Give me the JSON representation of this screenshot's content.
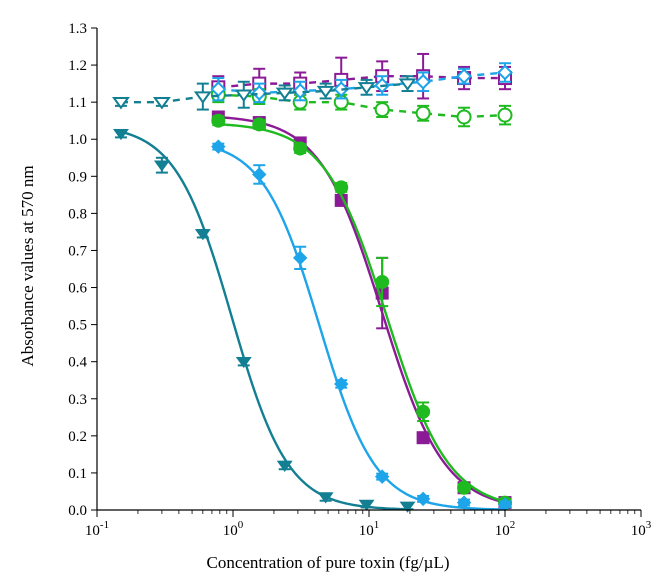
{
  "chart_data": {
    "type": "line",
    "xlabel": "Concentration of pure toxin (fg/µL)",
    "ylabel": "Absorbance values at 570 nm",
    "xscale": "log",
    "xlim": [
      0.1,
      1000
    ],
    "ylim": [
      0.0,
      1.3
    ],
    "x_ticks": [
      {
        "value": 0.1,
        "base": "10",
        "exp": "-1"
      },
      {
        "value": 1,
        "base": "10",
        "exp": "0"
      },
      {
        "value": 10,
        "base": "10",
        "exp": "1"
      },
      {
        "value": 100,
        "base": "10",
        "exp": "2"
      },
      {
        "value": 1000,
        "base": "10",
        "exp": "3"
      }
    ],
    "y_ticks": [
      "0.0",
      "0.1",
      "0.2",
      "0.3",
      "0.4",
      "0.5",
      "0.6",
      "0.7",
      "0.8",
      "0.9",
      "1.0",
      "1.1",
      "1.2",
      "1.3"
    ],
    "grid": false,
    "legend": "none",
    "series": [
      {
        "color": "#8b1a96",
        "marker": "square",
        "filled": true,
        "line": "solid",
        "fit": {
          "top": 1.065,
          "bottom": 0.0,
          "ec50": 12.5,
          "hill": 1.9
        },
        "points": [
          {
            "x": 0.78,
            "y": 1.06,
            "err": 0.012
          },
          {
            "x": 1.56,
            "y": 1.045,
            "err": 0.012
          },
          {
            "x": 3.12,
            "y": 0.99,
            "err": 0.012
          },
          {
            "x": 6.25,
            "y": 0.835,
            "err": 0.012
          },
          {
            "x": 12.5,
            "y": 0.585,
            "err": 0.095
          },
          {
            "x": 25,
            "y": 0.195,
            "err": 0.012
          },
          {
            "x": 50,
            "y": 0.06,
            "err": 0.01
          },
          {
            "x": 100,
            "y": 0.02,
            "err": 0.01
          }
        ]
      },
      {
        "color": "#1fba1f",
        "marker": "circle",
        "filled": true,
        "line": "solid",
        "fit": {
          "top": 1.045,
          "bottom": 0.0,
          "ec50": 13.5,
          "hill": 1.9
        },
        "points": [
          {
            "x": 0.78,
            "y": 1.05,
            "err": 0.012
          },
          {
            "x": 1.56,
            "y": 1.04,
            "err": 0.012
          },
          {
            "x": 3.12,
            "y": 0.975,
            "err": 0.012
          },
          {
            "x": 6.25,
            "y": 0.87,
            "err": 0.012
          },
          {
            "x": 12.5,
            "y": 0.615,
            "err": 0.065
          },
          {
            "x": 25,
            "y": 0.265,
            "err": 0.025
          },
          {
            "x": 50,
            "y": 0.06,
            "err": 0.01
          },
          {
            "x": 100,
            "y": 0.02,
            "err": 0.01
          }
        ]
      },
      {
        "color": "#1ea4e9",
        "marker": "diamond",
        "filled": true,
        "line": "solid",
        "fit": {
          "top": 1.0,
          "bottom": 0.0,
          "ec50": 4.3,
          "hill": 2.1
        },
        "points": [
          {
            "x": 0.78,
            "y": 0.98,
            "err": 0.008
          },
          {
            "x": 1.56,
            "y": 0.905,
            "err": 0.025
          },
          {
            "x": 3.12,
            "y": 0.68,
            "err": 0.03
          },
          {
            "x": 6.25,
            "y": 0.34,
            "err": 0.01
          },
          {
            "x": 12.5,
            "y": 0.09,
            "err": 0.008
          },
          {
            "x": 25,
            "y": 0.03,
            "err": 0.008
          },
          {
            "x": 50,
            "y": 0.02,
            "err": 0.008
          },
          {
            "x": 100,
            "y": 0.015,
            "err": 0.008
          }
        ]
      },
      {
        "color": "#137f92",
        "marker": "triangle-down",
        "filled": true,
        "line": "solid",
        "fit": {
          "top": 1.04,
          "bottom": 0.0,
          "ec50": 0.98,
          "hill": 2.1
        },
        "points": [
          {
            "x": 0.15,
            "y": 1.015,
            "err": 0.01
          },
          {
            "x": 0.3,
            "y": 0.93,
            "err": 0.02
          },
          {
            "x": 0.6,
            "y": 0.745,
            "err": 0.01
          },
          {
            "x": 1.2,
            "y": 0.4,
            "err": 0.01
          },
          {
            "x": 2.4,
            "y": 0.12,
            "err": 0.01
          },
          {
            "x": 4.8,
            "y": 0.035,
            "err": 0.01
          },
          {
            "x": 9.6,
            "y": 0.015,
            "err": 0.008
          },
          {
            "x": 19.2,
            "y": 0.01,
            "err": 0.008
          }
        ]
      },
      {
        "color": "#8b1a96",
        "marker": "square",
        "filled": false,
        "line": "dashed",
        "points": [
          {
            "x": 0.78,
            "y": 1.14,
            "err": 0.03
          },
          {
            "x": 1.56,
            "y": 1.15,
            "err": 0.04
          },
          {
            "x": 3.12,
            "y": 1.15,
            "err": 0.03
          },
          {
            "x": 6.25,
            "y": 1.16,
            "err": 0.06
          },
          {
            "x": 12.5,
            "y": 1.17,
            "err": 0.04
          },
          {
            "x": 25,
            "y": 1.17,
            "err": 0.06
          },
          {
            "x": 50,
            "y": 1.165,
            "err": 0.03
          },
          {
            "x": 100,
            "y": 1.165,
            "err": 0.03
          }
        ]
      },
      {
        "color": "#1fba1f",
        "marker": "circle",
        "filled": false,
        "line": "dashed",
        "points": [
          {
            "x": 0.78,
            "y": 1.12,
            "err": 0.02
          },
          {
            "x": 1.56,
            "y": 1.115,
            "err": 0.02
          },
          {
            "x": 3.12,
            "y": 1.1,
            "err": 0.02
          },
          {
            "x": 6.25,
            "y": 1.1,
            "err": 0.02
          },
          {
            "x": 12.5,
            "y": 1.08,
            "err": 0.02
          },
          {
            "x": 25,
            "y": 1.07,
            "err": 0.02
          },
          {
            "x": 50,
            "y": 1.06,
            "err": 0.025
          },
          {
            "x": 100,
            "y": 1.065,
            "err": 0.025
          }
        ]
      },
      {
        "color": "#1ea4e9",
        "marker": "diamond",
        "filled": false,
        "line": "dashed",
        "points": [
          {
            "x": 0.78,
            "y": 1.135,
            "err": 0.03
          },
          {
            "x": 1.56,
            "y": 1.125,
            "err": 0.025
          },
          {
            "x": 3.12,
            "y": 1.13,
            "err": 0.025
          },
          {
            "x": 6.25,
            "y": 1.135,
            "err": 0.025
          },
          {
            "x": 12.5,
            "y": 1.145,
            "err": 0.025
          },
          {
            "x": 25,
            "y": 1.155,
            "err": 0.025
          },
          {
            "x": 50,
            "y": 1.17,
            "err": 0.02
          },
          {
            "x": 100,
            "y": 1.18,
            "err": 0.025
          }
        ]
      },
      {
        "color": "#137f92",
        "marker": "triangle-down",
        "filled": false,
        "line": "dashed",
        "points": [
          {
            "x": 0.15,
            "y": 1.1,
            "err": 0.01
          },
          {
            "x": 0.3,
            "y": 1.1,
            "err": 0.01
          },
          {
            "x": 0.6,
            "y": 1.115,
            "err": 0.035
          },
          {
            "x": 1.2,
            "y": 1.12,
            "err": 0.035
          },
          {
            "x": 2.4,
            "y": 1.125,
            "err": 0.02
          },
          {
            "x": 4.8,
            "y": 1.13,
            "err": 0.02
          },
          {
            "x": 9.6,
            "y": 1.14,
            "err": 0.02
          },
          {
            "x": 19.2,
            "y": 1.15,
            "err": 0.02
          }
        ]
      }
    ]
  }
}
